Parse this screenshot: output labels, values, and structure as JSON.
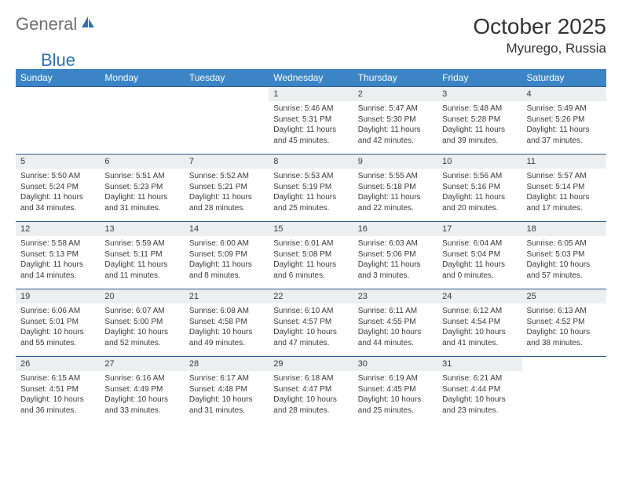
{
  "brand": {
    "part1": "General",
    "part2": "Blue"
  },
  "title": "October 2025",
  "location": "Myurego, Russia",
  "colors": {
    "header_bg": "#3b85c6",
    "header_text": "#ffffff",
    "daynum_bg": "#eceeef",
    "border_top": "#2d5a8a",
    "text": "#3a3a3a",
    "brand_gray": "#6f6f6f",
    "brand_blue": "#2d71b8"
  },
  "dayNames": [
    "Sunday",
    "Monday",
    "Tuesday",
    "Wednesday",
    "Thursday",
    "Friday",
    "Saturday"
  ],
  "weeks": [
    [
      null,
      null,
      null,
      {
        "n": "1",
        "sr": "5:46 AM",
        "ss": "5:31 PM",
        "dl": "11 hours and 45 minutes."
      },
      {
        "n": "2",
        "sr": "5:47 AM",
        "ss": "5:30 PM",
        "dl": "11 hours and 42 minutes."
      },
      {
        "n": "3",
        "sr": "5:48 AM",
        "ss": "5:28 PM",
        "dl": "11 hours and 39 minutes."
      },
      {
        "n": "4",
        "sr": "5:49 AM",
        "ss": "5:26 PM",
        "dl": "11 hours and 37 minutes."
      }
    ],
    [
      {
        "n": "5",
        "sr": "5:50 AM",
        "ss": "5:24 PM",
        "dl": "11 hours and 34 minutes."
      },
      {
        "n": "6",
        "sr": "5:51 AM",
        "ss": "5:23 PM",
        "dl": "11 hours and 31 minutes."
      },
      {
        "n": "7",
        "sr": "5:52 AM",
        "ss": "5:21 PM",
        "dl": "11 hours and 28 minutes."
      },
      {
        "n": "8",
        "sr": "5:53 AM",
        "ss": "5:19 PM",
        "dl": "11 hours and 25 minutes."
      },
      {
        "n": "9",
        "sr": "5:55 AM",
        "ss": "5:18 PM",
        "dl": "11 hours and 22 minutes."
      },
      {
        "n": "10",
        "sr": "5:56 AM",
        "ss": "5:16 PM",
        "dl": "11 hours and 20 minutes."
      },
      {
        "n": "11",
        "sr": "5:57 AM",
        "ss": "5:14 PM",
        "dl": "11 hours and 17 minutes."
      }
    ],
    [
      {
        "n": "12",
        "sr": "5:58 AM",
        "ss": "5:13 PM",
        "dl": "11 hours and 14 minutes."
      },
      {
        "n": "13",
        "sr": "5:59 AM",
        "ss": "5:11 PM",
        "dl": "11 hours and 11 minutes."
      },
      {
        "n": "14",
        "sr": "6:00 AM",
        "ss": "5:09 PM",
        "dl": "11 hours and 8 minutes."
      },
      {
        "n": "15",
        "sr": "6:01 AM",
        "ss": "5:08 PM",
        "dl": "11 hours and 6 minutes."
      },
      {
        "n": "16",
        "sr": "6:03 AM",
        "ss": "5:06 PM",
        "dl": "11 hours and 3 minutes."
      },
      {
        "n": "17",
        "sr": "6:04 AM",
        "ss": "5:04 PM",
        "dl": "11 hours and 0 minutes."
      },
      {
        "n": "18",
        "sr": "6:05 AM",
        "ss": "5:03 PM",
        "dl": "10 hours and 57 minutes."
      }
    ],
    [
      {
        "n": "19",
        "sr": "6:06 AM",
        "ss": "5:01 PM",
        "dl": "10 hours and 55 minutes."
      },
      {
        "n": "20",
        "sr": "6:07 AM",
        "ss": "5:00 PM",
        "dl": "10 hours and 52 minutes."
      },
      {
        "n": "21",
        "sr": "6:08 AM",
        "ss": "4:58 PM",
        "dl": "10 hours and 49 minutes."
      },
      {
        "n": "22",
        "sr": "6:10 AM",
        "ss": "4:57 PM",
        "dl": "10 hours and 47 minutes."
      },
      {
        "n": "23",
        "sr": "6:11 AM",
        "ss": "4:55 PM",
        "dl": "10 hours and 44 minutes."
      },
      {
        "n": "24",
        "sr": "6:12 AM",
        "ss": "4:54 PM",
        "dl": "10 hours and 41 minutes."
      },
      {
        "n": "25",
        "sr": "6:13 AM",
        "ss": "4:52 PM",
        "dl": "10 hours and 38 minutes."
      }
    ],
    [
      {
        "n": "26",
        "sr": "6:15 AM",
        "ss": "4:51 PM",
        "dl": "10 hours and 36 minutes."
      },
      {
        "n": "27",
        "sr": "6:16 AM",
        "ss": "4:49 PM",
        "dl": "10 hours and 33 minutes."
      },
      {
        "n": "28",
        "sr": "6:17 AM",
        "ss": "4:48 PM",
        "dl": "10 hours and 31 minutes."
      },
      {
        "n": "29",
        "sr": "6:18 AM",
        "ss": "4:47 PM",
        "dl": "10 hours and 28 minutes."
      },
      {
        "n": "30",
        "sr": "6:19 AM",
        "ss": "4:45 PM",
        "dl": "10 hours and 25 minutes."
      },
      {
        "n": "31",
        "sr": "6:21 AM",
        "ss": "4:44 PM",
        "dl": "10 hours and 23 minutes."
      },
      null
    ]
  ],
  "labels": {
    "sunrise": "Sunrise:",
    "sunset": "Sunset:",
    "daylight": "Daylight:"
  }
}
